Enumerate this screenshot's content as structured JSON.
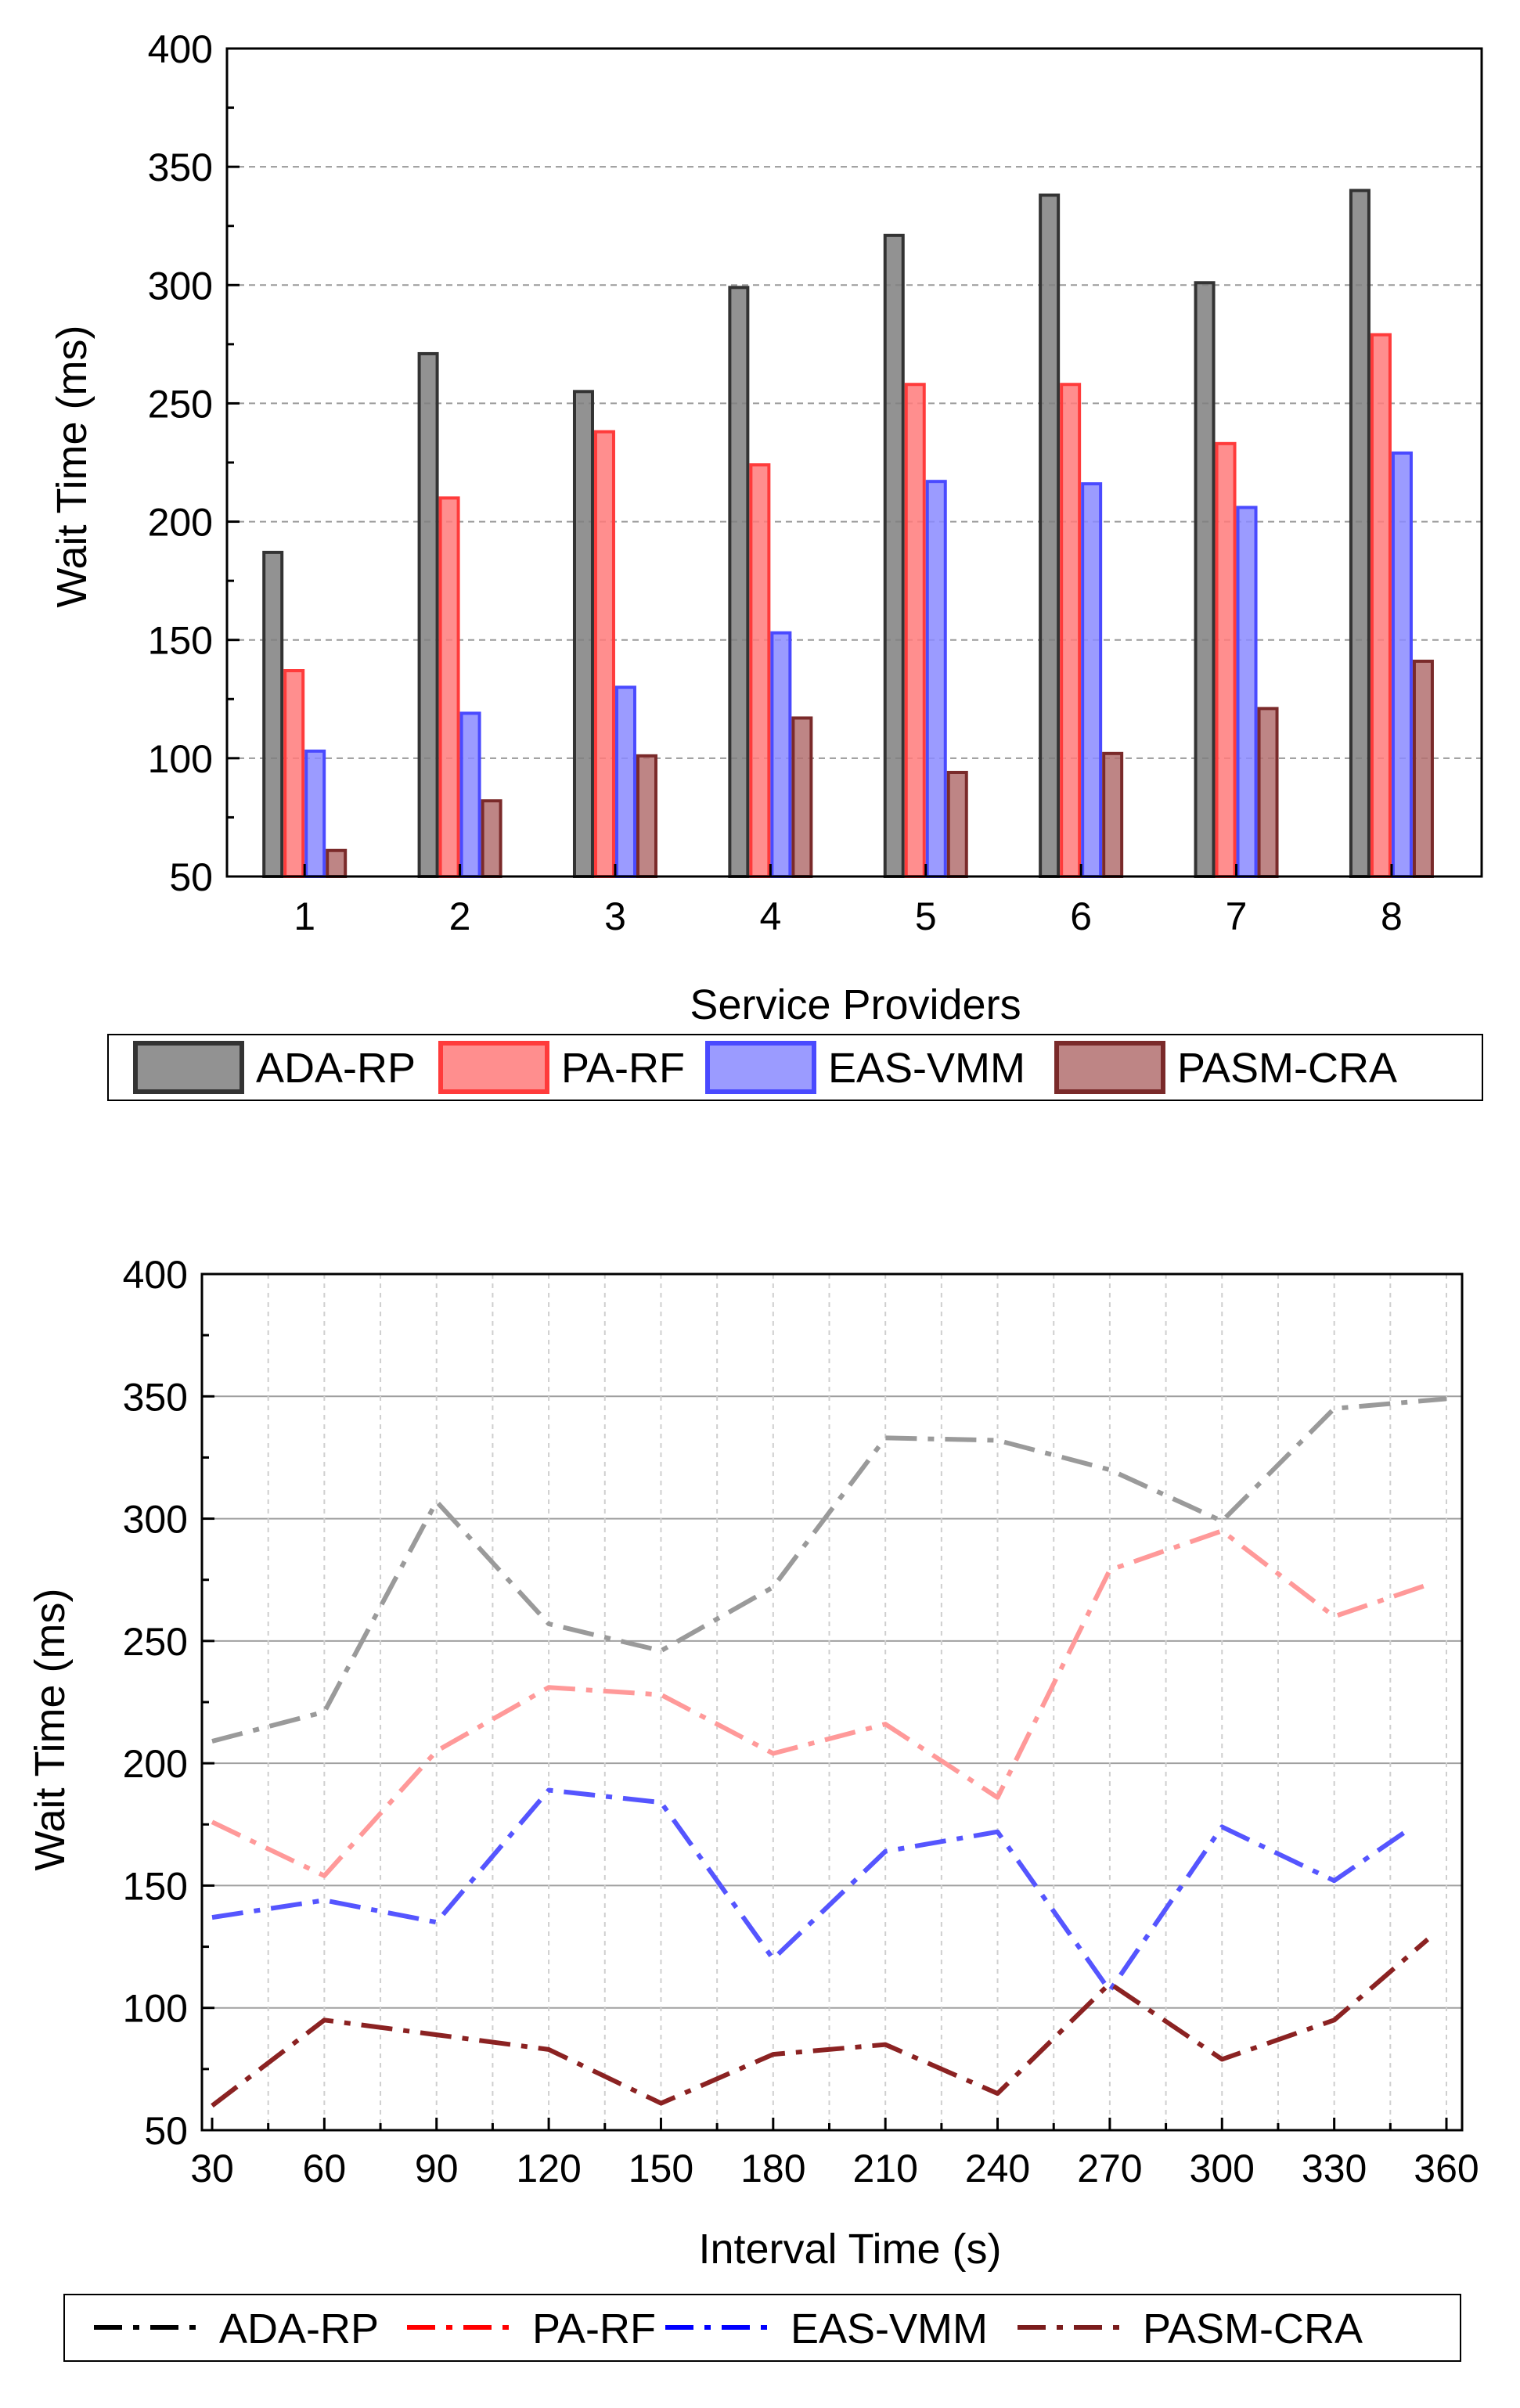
{
  "chart_data": [
    {
      "type": "bar",
      "title": "",
      "xlabel": "Service Providers",
      "ylabel": "Wait Time (ms)",
      "ylim": [
        50,
        400
      ],
      "yticks": [
        50,
        100,
        150,
        200,
        250,
        300,
        350,
        400
      ],
      "categories": [
        "1",
        "2",
        "3",
        "4",
        "5",
        "6",
        "7",
        "8"
      ],
      "grid": "horizontal dashed",
      "legend_position": "bottom",
      "series": [
        {
          "name": "ADA-RP",
          "color": "#7f7f7f",
          "edge": "#333333",
          "values": [
            187,
            271,
            255,
            299,
            321,
            338,
            301,
            340
          ]
        },
        {
          "name": "PA-RF",
          "color": "#ff7a7a",
          "edge": "#ff3b3b",
          "values": [
            137,
            210,
            238,
            224,
            258,
            258,
            233,
            279
          ]
        },
        {
          "name": "EAS-VMM",
          "color": "#8a8aff",
          "edge": "#4a4aff",
          "values": [
            103,
            119,
            130,
            153,
            217,
            216,
            206,
            229
          ]
        },
        {
          "name": "PASM-CRA",
          "color": "#b37070",
          "edge": "#7a2a2a",
          "values": [
            61,
            82,
            101,
            117,
            94,
            102,
            121,
            141
          ]
        }
      ]
    },
    {
      "type": "line",
      "title": "",
      "xlabel": "Interval Time (s)",
      "ylabel": "Wait Time (ms)",
      "ylim": [
        50,
        400
      ],
      "xlim": [
        30,
        360
      ],
      "yticks": [
        50,
        100,
        150,
        200,
        250,
        300,
        350,
        400
      ],
      "xticks": [
        30,
        60,
        90,
        120,
        150,
        180,
        210,
        240,
        270,
        300,
        330,
        360
      ],
      "grid": "horizontal solid, vertical dashed",
      "legend_position": "bottom",
      "series": [
        {
          "name": "ADA-RP",
          "legend_color": "#000000",
          "color": "#9a9a9a",
          "x": [
            30,
            60,
            90,
            120,
            150,
            180,
            210,
            240,
            270,
            300,
            330,
            360
          ],
          "y": [
            209,
            221,
            307,
            257,
            246,
            272,
            333,
            332,
            320,
            299,
            345,
            349
          ]
        },
        {
          "name": "PA-RF",
          "legend_color": "#ff0000",
          "color": "#ff9999",
          "x": [
            30,
            60,
            90,
            120,
            150,
            180,
            210,
            240,
            270,
            300,
            330,
            355
          ],
          "y": [
            176,
            154,
            205,
            231,
            228,
            204,
            216,
            186,
            279,
            295,
            260,
            273
          ]
        },
        {
          "name": "EAS-VMM",
          "legend_color": "#0000ff",
          "color": "#5555ff",
          "x": [
            30,
            60,
            90,
            120,
            150,
            180,
            210,
            240,
            270,
            300,
            330,
            350
          ],
          "y": [
            137,
            144,
            135,
            189,
            184,
            120,
            164,
            172,
            107,
            174,
            152,
            173
          ]
        },
        {
          "name": "PASM-CRA",
          "legend_color": "#7a1c1c",
          "color": "#8b2222",
          "x": [
            30,
            60,
            90,
            120,
            150,
            180,
            210,
            240,
            270,
            300,
            330,
            355
          ],
          "y": [
            60,
            95,
            89,
            83,
            61,
            81,
            85,
            65,
            110,
            79,
            95,
            128
          ]
        }
      ]
    }
  ]
}
